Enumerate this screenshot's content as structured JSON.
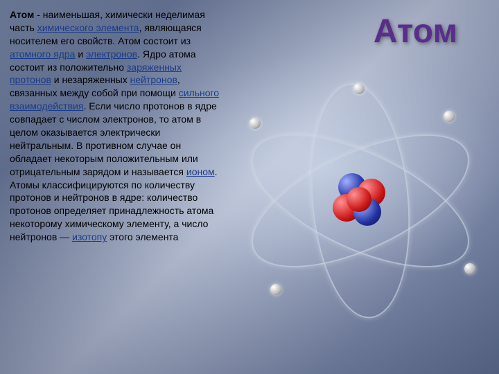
{
  "title": {
    "text": "Атом",
    "color": "#5a2d8a",
    "fontsize": 48
  },
  "body": {
    "lead": "Атом",
    "seg1": " - наименьшая, химически неделимая часть ",
    "link1": "химического элемента",
    "seg2": ", являющаяся носителем его свойств. Атом состоит из ",
    "link2": "атомного ядра",
    "seg3": " и ",
    "link3": "электронов",
    "seg4": ". Ядро атома состоит из положительно ",
    "link4": "заряженных",
    "seg5": " ",
    "link5": "протонов",
    "seg6": " и незаряженных ",
    "link6": "нейтронов",
    "seg7": ", связанных между собой при помощи ",
    "link7": "сильного взаимодействия",
    "seg8": ". Если число протонов в ядре совпадает с числом электронов, то атом в целом оказывается электрически нейтральным. В противном случае он обладает некоторым положительным или отрицательным зарядом и называется ",
    "link8": "ионом",
    "seg9": ". Атомы классифицируются по количеству протонов и нейтронов в ядре: количество протонов определяет принадлежность атома некоторому химическому элементу, а число нейтронов — ",
    "link9": "изотопу",
    "seg10": " этого элемента"
  },
  "colors": {
    "title": "#5a2d8a",
    "link": "#1a3a8a",
    "proton": "#cc1818",
    "neutron": "#2030a0",
    "electron": "#cccccc",
    "orbit": "#c8d2e1"
  },
  "atom_model": {
    "type": "diagram",
    "orbits": 3,
    "electrons": 5,
    "nucleus_particles": [
      {
        "kind": "proton",
        "color": "#cc1818"
      },
      {
        "kind": "neutron",
        "color": "#2030a0"
      },
      {
        "kind": "proton",
        "color": "#cc1818"
      },
      {
        "kind": "neutron",
        "color": "#2030a0"
      },
      {
        "kind": "proton",
        "color": "#cc1818"
      }
    ]
  }
}
